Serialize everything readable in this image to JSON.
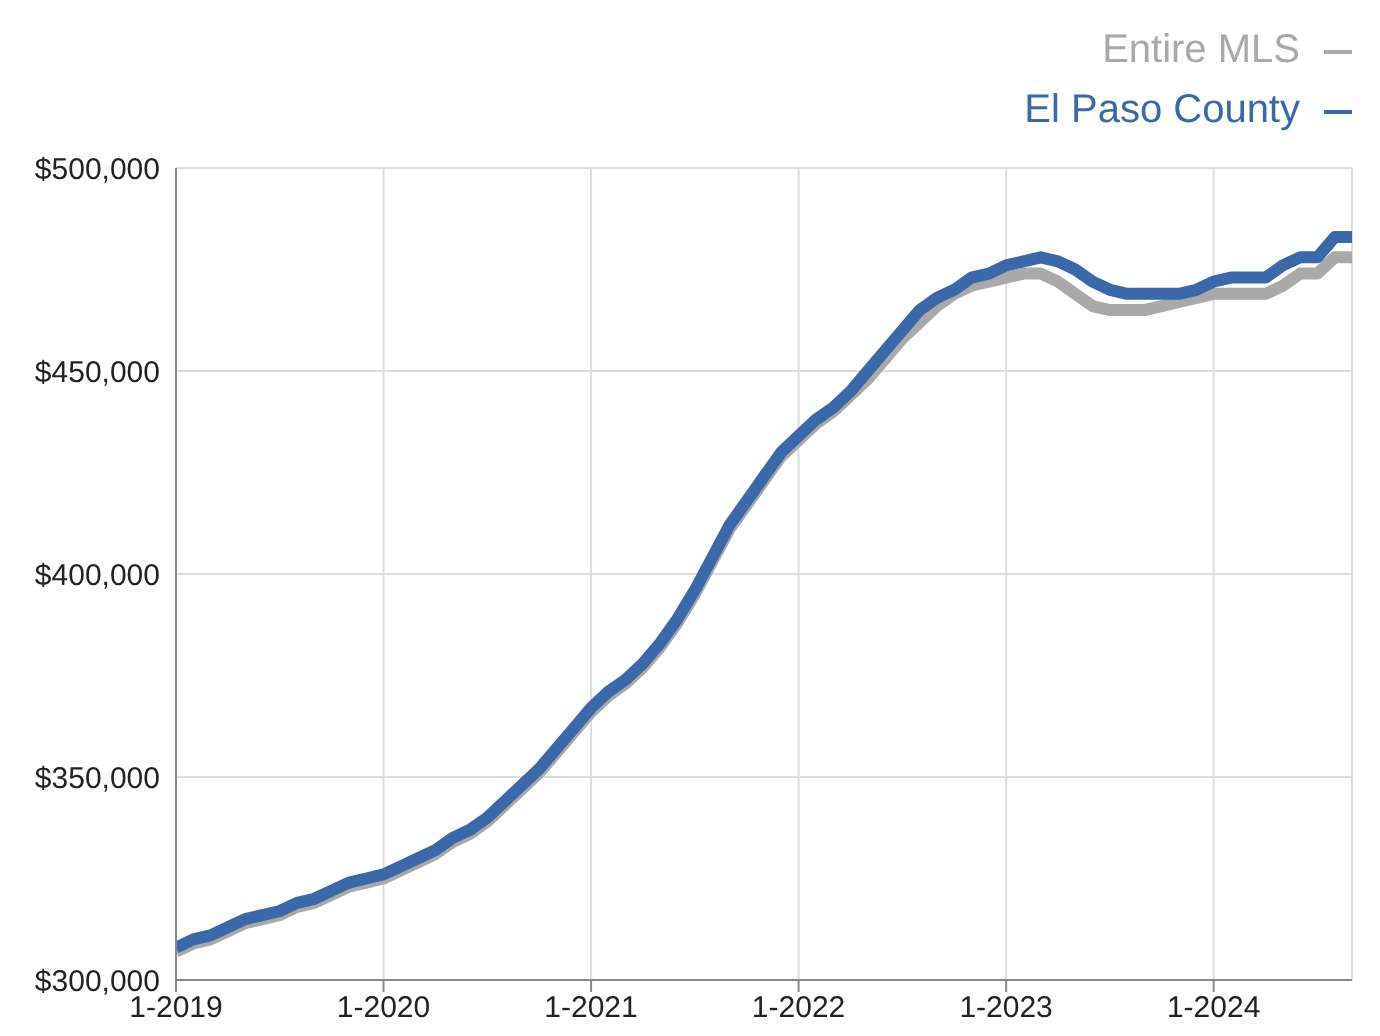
{
  "chart_data": {
    "type": "line",
    "x": [
      "2019-01",
      "2019-02",
      "2019-03",
      "2019-04",
      "2019-05",
      "2019-06",
      "2019-07",
      "2019-08",
      "2019-09",
      "2019-10",
      "2019-11",
      "2019-12",
      "2020-01",
      "2020-02",
      "2020-03",
      "2020-04",
      "2020-05",
      "2020-06",
      "2020-07",
      "2020-08",
      "2020-09",
      "2020-10",
      "2020-11",
      "2020-12",
      "2021-01",
      "2021-02",
      "2021-03",
      "2021-04",
      "2021-05",
      "2021-06",
      "2021-07",
      "2021-08",
      "2021-09",
      "2021-10",
      "2021-11",
      "2021-12",
      "2022-01",
      "2022-02",
      "2022-03",
      "2022-04",
      "2022-05",
      "2022-06",
      "2022-07",
      "2022-08",
      "2022-09",
      "2022-10",
      "2022-11",
      "2022-12",
      "2023-01",
      "2023-02",
      "2023-03",
      "2023-04",
      "2023-05",
      "2023-06",
      "2023-07",
      "2023-08",
      "2023-09",
      "2023-10",
      "2023-11",
      "2023-12",
      "2024-01",
      "2024-02",
      "2024-03",
      "2024-04",
      "2024-05",
      "2024-06",
      "2024-07",
      "2024-08",
      "2024-09"
    ],
    "series": [
      {
        "name": "Entire MLS",
        "color": "#a9a9a9",
        "values": [
          307000,
          309000,
          310000,
          312000,
          314000,
          315000,
          316000,
          318000,
          319000,
          321000,
          323000,
          324000,
          325000,
          327000,
          329000,
          331000,
          334000,
          336000,
          339000,
          343000,
          347000,
          351000,
          356000,
          361000,
          366000,
          370000,
          373000,
          377000,
          382000,
          388000,
          395000,
          403000,
          411000,
          417000,
          423000,
          429000,
          433000,
          437000,
          440000,
          444000,
          448000,
          453000,
          458000,
          462000,
          466000,
          469000,
          471000,
          472000,
          473000,
          474000,
          474000,
          472000,
          469000,
          466000,
          465000,
          465000,
          465000,
          466000,
          467000,
          468000,
          469000,
          469000,
          469000,
          469000,
          471000,
          474000,
          474000,
          478000,
          478000
        ]
      },
      {
        "name": "El Paso County",
        "color": "#3a68a8",
        "values": [
          308000,
          310000,
          311000,
          313000,
          315000,
          316000,
          317000,
          319000,
          320000,
          322000,
          324000,
          325000,
          326000,
          328000,
          330000,
          332000,
          335000,
          337000,
          340000,
          344000,
          348000,
          352000,
          357000,
          362000,
          367000,
          371000,
          374000,
          378000,
          383000,
          389000,
          396000,
          404000,
          412000,
          418000,
          424000,
          430000,
          434000,
          438000,
          441000,
          445000,
          450000,
          455000,
          460000,
          465000,
          468000,
          470000,
          473000,
          474000,
          476000,
          477000,
          478000,
          477000,
          475000,
          472000,
          470000,
          469000,
          469000,
          469000,
          469000,
          470000,
          472000,
          473000,
          473000,
          473000,
          476000,
          478000,
          478000,
          483000,
          483000
        ]
      }
    ],
    "xlim": [
      "2019-01",
      "2024-09"
    ],
    "xticks": [
      {
        "value": "2019-01",
        "label": "1-2019"
      },
      {
        "value": "2020-01",
        "label": "1-2020"
      },
      {
        "value": "2021-01",
        "label": "1-2021"
      },
      {
        "value": "2022-01",
        "label": "1-2022"
      },
      {
        "value": "2023-01",
        "label": "1-2023"
      },
      {
        "value": "2024-01",
        "label": "1-2024"
      }
    ],
    "ylim": [
      300000,
      500000
    ],
    "yticks": [
      {
        "value": 300000,
        "label": "$300,000"
      },
      {
        "value": 350000,
        "label": "$350,000"
      },
      {
        "value": 400000,
        "label": "$400,000"
      },
      {
        "value": 450000,
        "label": "$450,000"
      },
      {
        "value": 500000,
        "label": "$500,000"
      }
    ],
    "grid": true,
    "legend": "top right",
    "marker": "none",
    "line_style": "solid"
  }
}
